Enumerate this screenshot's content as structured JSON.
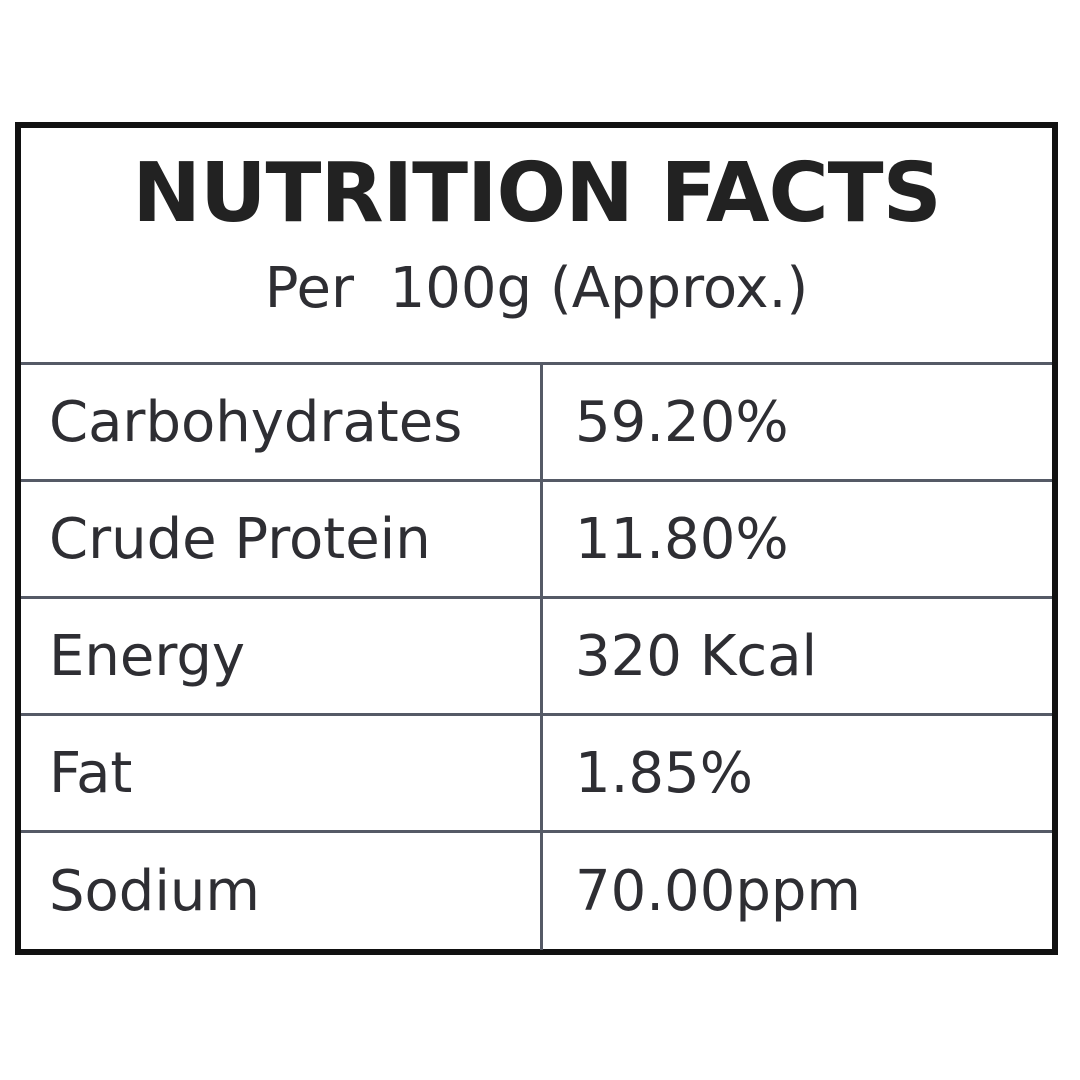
{
  "header": {
    "title": "NUTRITION FACTS",
    "subtitle": "Per  100g (Approx.)"
  },
  "table": {
    "rows": [
      [
        "Carbohydrates",
        "59.20%"
      ],
      [
        "Crude Protein",
        "11.80%"
      ],
      [
        "Energy",
        "320 Kcal"
      ],
      [
        "Fat",
        "1.85%"
      ],
      [
        "Sodium",
        "70.00ppm"
      ]
    ]
  }
}
